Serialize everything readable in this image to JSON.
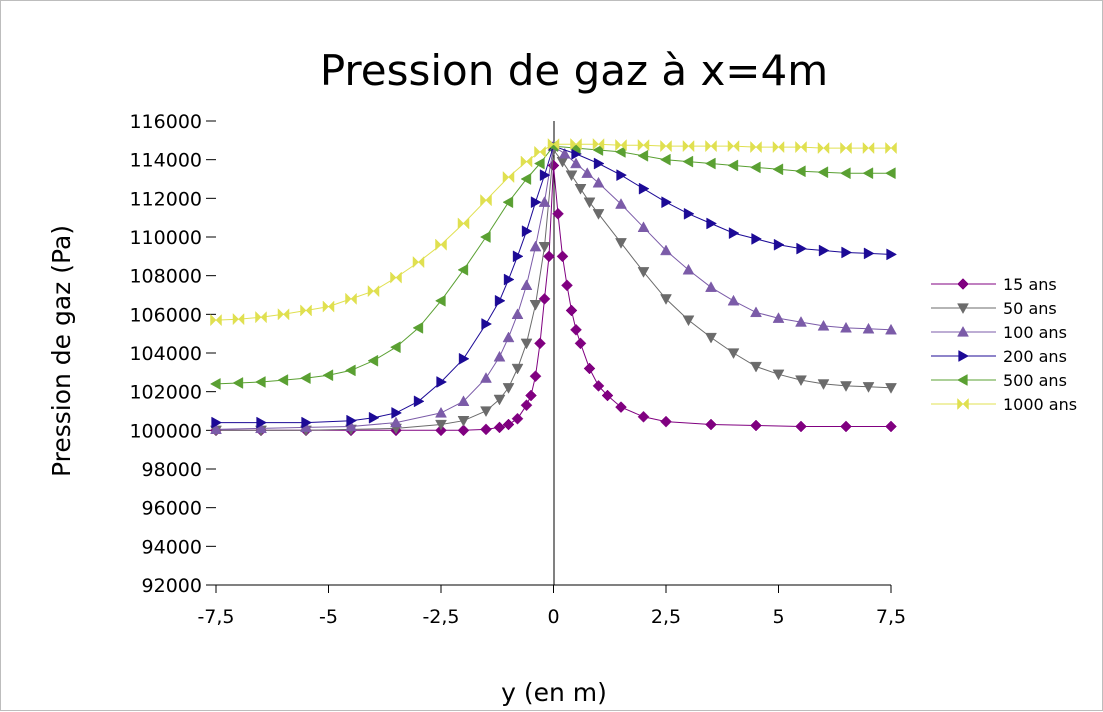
{
  "chart_data": {
    "type": "line",
    "title": "Pression de gaz à x=4m",
    "xlabel": "y (en m)",
    "ylabel": "Pression de gaz (Pa)",
    "xlim": [
      -7.5,
      7.5
    ],
    "ylim": [
      92000,
      116000
    ],
    "x_ticks": [
      -7.5,
      -5,
      -2.5,
      0,
      2.5,
      5,
      7.5
    ],
    "x_tick_labels": [
      "-7,5",
      "-5",
      "-2,5",
      "0",
      "2,5",
      "5",
      "7,5"
    ],
    "y_ticks": [
      92000,
      94000,
      96000,
      98000,
      100000,
      102000,
      104000,
      106000,
      108000,
      110000,
      112000,
      114000,
      116000
    ],
    "y_tick_labels": [
      "92000",
      "94000",
      "96000",
      "98000",
      "100000",
      "102000",
      "104000",
      "106000",
      "108000",
      "110000",
      "112000",
      "114000",
      "116000"
    ],
    "grid": false,
    "legend_position": "right",
    "series": [
      {
        "name": "15 ans",
        "color": "#800080",
        "marker": "diamond",
        "x": [
          -7.5,
          -6.5,
          -5.5,
          -4.5,
          -3.5,
          -2.5,
          -2.0,
          -1.5,
          -1.2,
          -1.0,
          -0.8,
          -0.6,
          -0.5,
          -0.4,
          -0.3,
          -0.2,
          -0.1,
          0,
          0.1,
          0.2,
          0.3,
          0.4,
          0.5,
          0.6,
          0.8,
          1.0,
          1.2,
          1.5,
          2.0,
          2.5,
          3.5,
          4.5,
          5.5,
          6.5,
          7.5
        ],
        "y": [
          100000,
          100000,
          100000,
          100000,
          100000,
          100000,
          100000,
          100050,
          100150,
          100300,
          100600,
          101300,
          101800,
          102800,
          104500,
          106800,
          109000,
          113700,
          111200,
          109000,
          107500,
          106200,
          105200,
          104500,
          103200,
          102300,
          101800,
          101200,
          100700,
          100450,
          100300,
          100250,
          100200,
          100200,
          100200
        ]
      },
      {
        "name": "50 ans",
        "color": "#6b6b6b",
        "marker": "triangle-down",
        "x": [
          -7.5,
          -6.5,
          -5.5,
          -4.5,
          -3.5,
          -2.5,
          -2.0,
          -1.5,
          -1.2,
          -1.0,
          -0.8,
          -0.6,
          -0.4,
          -0.2,
          0,
          0.2,
          0.4,
          0.6,
          0.8,
          1.0,
          1.5,
          2.0,
          2.5,
          3.0,
          3.5,
          4.0,
          4.5,
          5.0,
          5.5,
          6.0,
          6.5,
          7.0,
          7.5
        ],
        "y": [
          100000,
          100000,
          100000,
          100050,
          100100,
          100300,
          100500,
          101000,
          101600,
          102200,
          103200,
          104500,
          106500,
          109500,
          114500,
          113900,
          113200,
          112500,
          111800,
          111200,
          109700,
          108200,
          106800,
          105700,
          104800,
          104000,
          103300,
          102900,
          102600,
          102400,
          102300,
          102250,
          102200
        ]
      },
      {
        "name": "100 ans",
        "color": "#7b5ba8",
        "marker": "triangle-up",
        "x": [
          -7.5,
          -6.5,
          -5.5,
          -4.5,
          -3.5,
          -2.5,
          -2.0,
          -1.5,
          -1.2,
          -1.0,
          -0.8,
          -0.6,
          -0.4,
          -0.2,
          0,
          0.25,
          0.5,
          0.75,
          1.0,
          1.5,
          2.0,
          2.5,
          3.0,
          3.5,
          4.0,
          4.5,
          5.0,
          5.5,
          6.0,
          6.5,
          7.0,
          7.5
        ],
        "y": [
          100050,
          100100,
          100150,
          100200,
          100400,
          100900,
          101500,
          102700,
          103800,
          104800,
          106000,
          107500,
          109500,
          111800,
          114700,
          114300,
          113800,
          113300,
          112800,
          111700,
          110500,
          109300,
          108300,
          107400,
          106700,
          106100,
          105800,
          105600,
          105400,
          105300,
          105250,
          105200
        ]
      },
      {
        "name": "200 ans",
        "color": "#1c0a96",
        "marker": "triangle-right",
        "x": [
          -7.5,
          -6.5,
          -5.5,
          -4.5,
          -4.0,
          -3.5,
          -3.0,
          -2.5,
          -2.0,
          -1.5,
          -1.2,
          -1.0,
          -0.8,
          -0.6,
          -0.4,
          -0.2,
          0,
          0.5,
          1.0,
          1.5,
          2.0,
          2.5,
          3.0,
          3.5,
          4.0,
          4.5,
          5.0,
          5.5,
          6.0,
          6.5,
          7.0,
          7.5
        ],
        "y": [
          100400,
          100400,
          100400,
          100500,
          100650,
          100900,
          101500,
          102500,
          103700,
          105500,
          106700,
          107800,
          109000,
          110300,
          111800,
          113200,
          114700,
          114300,
          113800,
          113200,
          112500,
          111800,
          111200,
          110700,
          110200,
          109900,
          109600,
          109400,
          109300,
          109200,
          109150,
          109100
        ]
      },
      {
        "name": "500 ans",
        "color": "#5aa032",
        "marker": "triangle-left",
        "x": [
          -7.5,
          -7.0,
          -6.5,
          -6.0,
          -5.5,
          -5.0,
          -4.5,
          -4.0,
          -3.5,
          -3.0,
          -2.5,
          -2.0,
          -1.5,
          -1.0,
          -0.6,
          -0.3,
          0,
          0.5,
          1.0,
          1.5,
          2.0,
          2.5,
          3.0,
          3.5,
          4.0,
          4.5,
          5.0,
          5.5,
          6.0,
          6.5,
          7.0,
          7.5
        ],
        "y": [
          102400,
          102450,
          102500,
          102600,
          102700,
          102850,
          103100,
          103600,
          104300,
          105300,
          106700,
          108300,
          110000,
          111800,
          113000,
          113800,
          114700,
          114600,
          114500,
          114400,
          114200,
          114000,
          113900,
          113800,
          113700,
          113600,
          113500,
          113400,
          113350,
          113300,
          113300,
          113300
        ]
      },
      {
        "name": "1000 ans",
        "color": "#e0e050",
        "marker": "bowtie",
        "x": [
          -7.5,
          -7.0,
          -6.5,
          -6.0,
          -5.5,
          -5.0,
          -4.5,
          -4.0,
          -3.5,
          -3.0,
          -2.5,
          -2.0,
          -1.5,
          -1.0,
          -0.6,
          -0.3,
          0,
          0.5,
          1.0,
          1.5,
          2.0,
          2.5,
          3.0,
          3.5,
          4.0,
          4.5,
          5.0,
          5.5,
          6.0,
          6.5,
          7.0,
          7.5
        ],
        "y": [
          105700,
          105750,
          105850,
          106000,
          106200,
          106400,
          106800,
          107200,
          107900,
          108700,
          109600,
          110700,
          111900,
          113100,
          113900,
          114400,
          114800,
          114800,
          114800,
          114750,
          114750,
          114700,
          114700,
          114700,
          114700,
          114650,
          114650,
          114650,
          114600,
          114600,
          114600,
          114600
        ]
      }
    ]
  }
}
